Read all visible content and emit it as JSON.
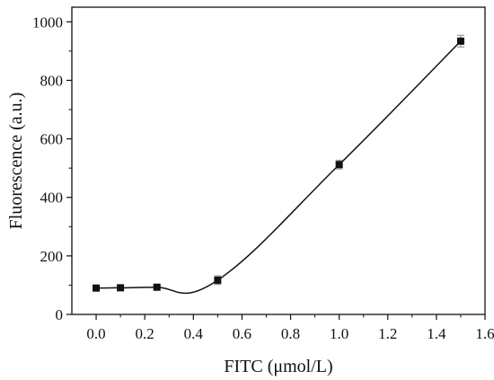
{
  "chart_data": {
    "type": "scatter",
    "xlabel": "FITC (μmol/L)",
    "ylabel": "Fluorescence (a.u.)",
    "xlim": [
      -0.1,
      1.6
    ],
    "ylim": [
      0,
      1050
    ],
    "xticks": [
      0.0,
      0.2,
      0.4,
      0.6,
      0.8,
      1.0,
      1.2,
      1.4,
      1.6
    ],
    "xtick_labels": [
      "0.0",
      "0.2",
      "0.4",
      "0.6",
      "0.8",
      "1.0",
      "1.2",
      "1.4",
      "1.6"
    ],
    "yticks": [
      0,
      200,
      400,
      600,
      800,
      1000
    ],
    "ytick_labels": [
      "0",
      "200",
      "400",
      "600",
      "800",
      "1000"
    ],
    "grid": false,
    "series": [
      {
        "marker": "square",
        "x": [
          0.0,
          0.1,
          0.25,
          0.5,
          1.0,
          1.5
        ],
        "y": [
          90,
          91,
          93,
          117,
          512,
          934
        ],
        "error": [
          6,
          6,
          6,
          15,
          15,
          20
        ]
      }
    ],
    "fit_curve": true
  }
}
